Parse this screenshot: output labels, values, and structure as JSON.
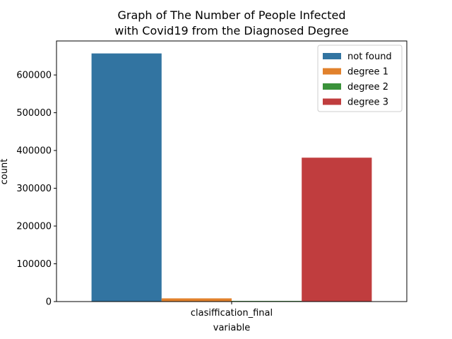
{
  "chart_data": {
    "type": "bar",
    "title_lines": [
      "Graph of The Number of People Infected",
      "with Covid19 from the Diagnosed Degree"
    ],
    "xlabel": "variable",
    "ylabel": "count",
    "categories": [
      "clasiffication_final"
    ],
    "series": [
      {
        "name": "not found",
        "color": "#3274a1",
        "values": [
          657000
        ]
      },
      {
        "name": "degree 1",
        "color": "#e1812c",
        "values": [
          8500
        ]
      },
      {
        "name": "degree 2",
        "color": "#3a923a",
        "values": [
          1800
        ]
      },
      {
        "name": "degree 3",
        "color": "#c03d3e",
        "values": [
          381000
        ]
      }
    ],
    "ylim": [
      0,
      690000
    ],
    "yticks": [
      0,
      100000,
      200000,
      300000,
      400000,
      500000,
      600000
    ],
    "grid": false,
    "legend_position": "top-right"
  }
}
